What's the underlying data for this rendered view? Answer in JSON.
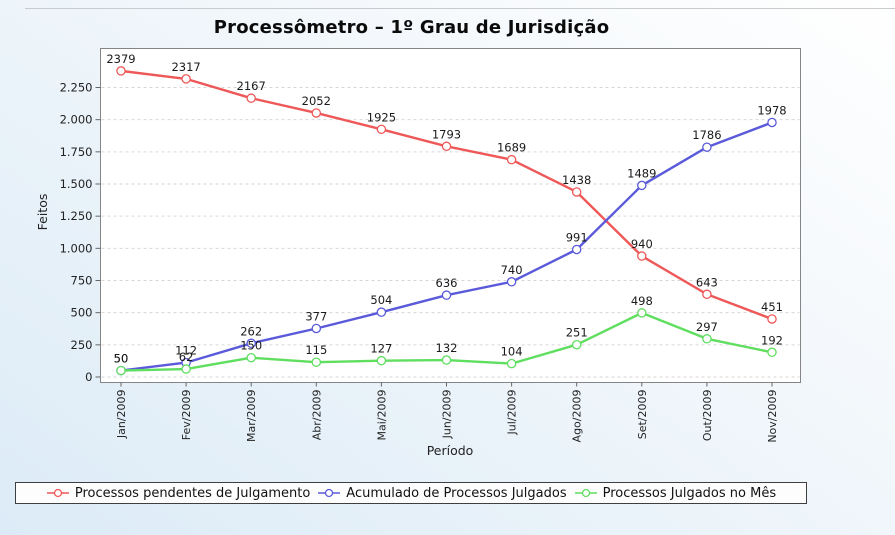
{
  "chart_data": {
    "type": "line",
    "title": "Processômetro – 1º Grau de Jurisdição",
    "xlabel": "Período",
    "ylabel": "Feitos",
    "categories": [
      "Jan/2009",
      "Fev/2009",
      "Mar/2009",
      "Abr/2009",
      "Mai/2009",
      "Jun/2009",
      "Jul/2009",
      "Ago/2009",
      "Set/2009",
      "Out/2009",
      "Nov/2009"
    ],
    "series": [
      {
        "name": "Processos pendentes de Julgamento",
        "color": "#ee5858",
        "values": [
          2379,
          2317,
          2167,
          2052,
          1925,
          1793,
          1689,
          1438,
          940,
          643,
          451
        ]
      },
      {
        "name": "Acumulado de Processos Julgados",
        "color": "#5a5ada",
        "values": [
          50,
          112,
          262,
          377,
          504,
          636,
          740,
          991,
          1489,
          1786,
          1978
        ]
      },
      {
        "name": "Processos Julgados no Mês",
        "color": "#5fde5f",
        "values": [
          50,
          62,
          150,
          115,
          127,
          132,
          104,
          251,
          498,
          297,
          192
        ]
      }
    ],
    "ylim": [
      0,
      2558
    ],
    "yticks": [
      0,
      250,
      500,
      750,
      1000,
      1250,
      1500,
      1750,
      2000,
      2250
    ],
    "ytick_labels": [
      "0",
      "250",
      "500",
      "750",
      "1.000",
      "1.250",
      "1.500",
      "1.750",
      "2.000",
      "2.250"
    ],
    "grid": "horizontal-dashed",
    "legend_position": "bottom",
    "point_labels": true,
    "marker": "circle-hollow"
  }
}
